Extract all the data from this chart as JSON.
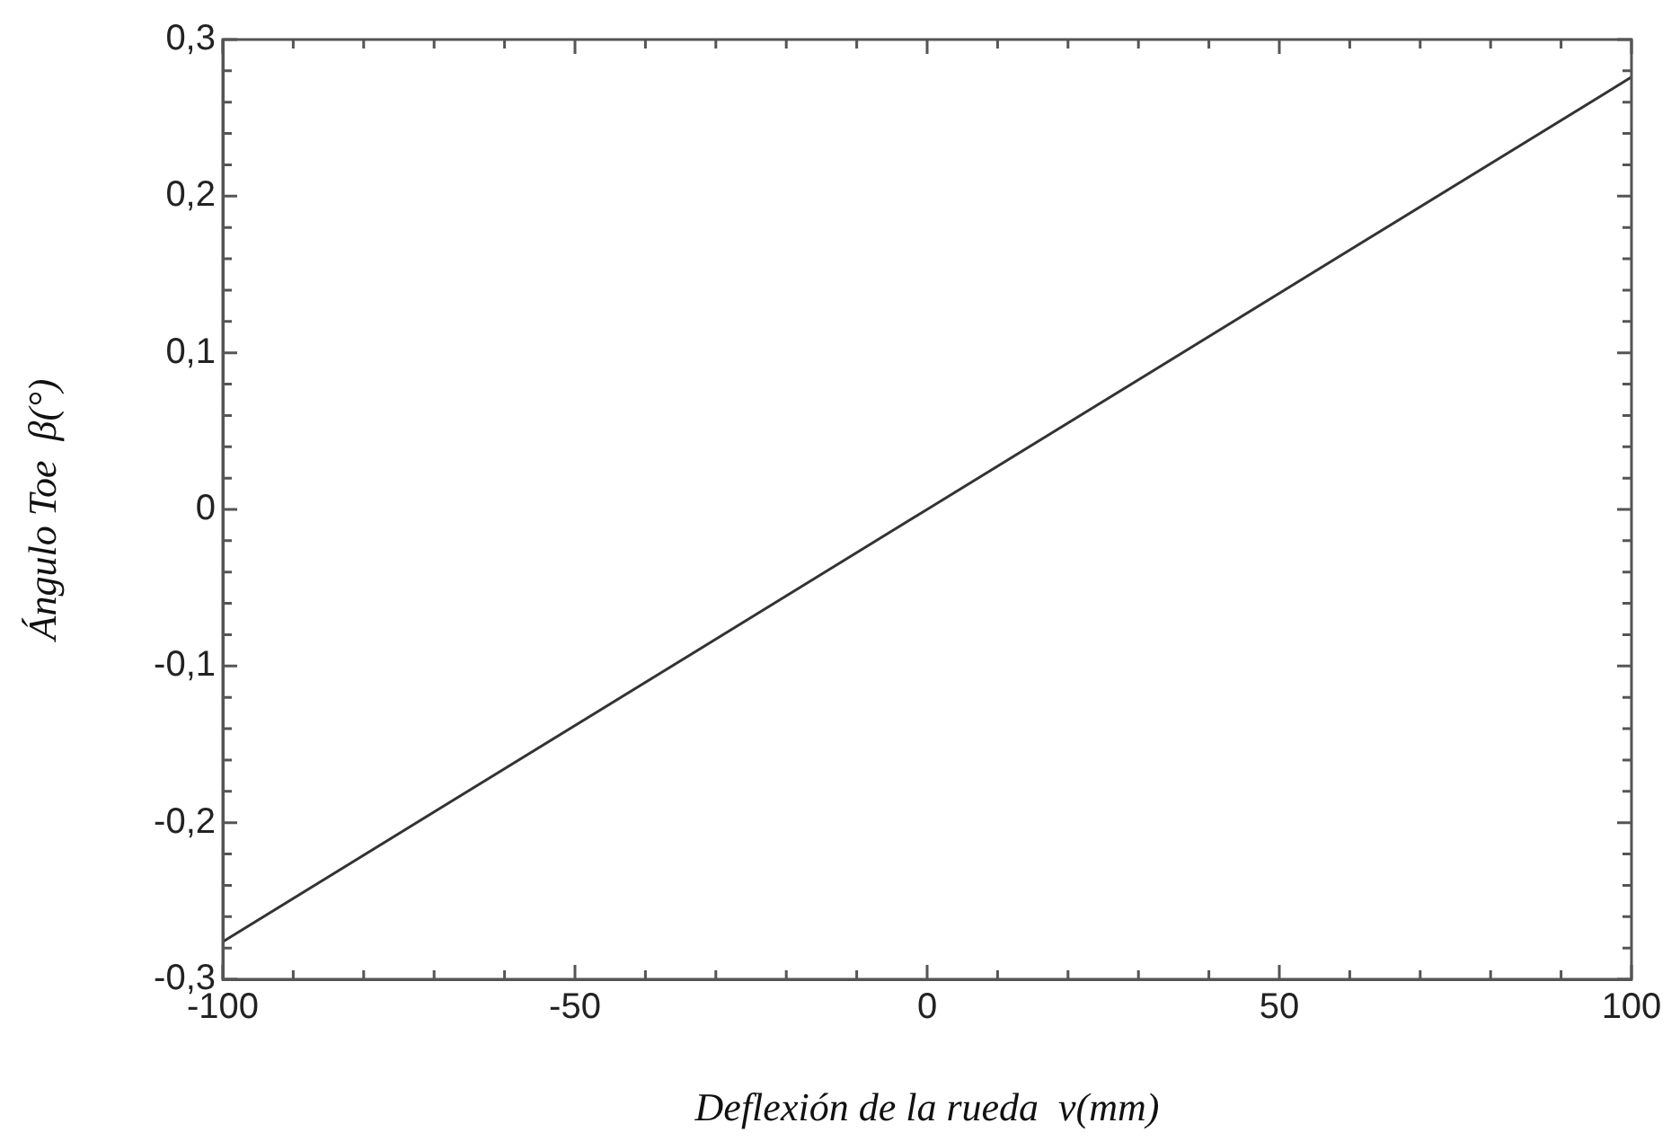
{
  "chart_data": {
    "type": "line",
    "xlabel": "Deflexión de la rueda  v(mm)",
    "ylabel": "Ángulo Toe  β(°)",
    "x": [
      -100,
      0,
      100
    ],
    "series": [
      {
        "color": "#333333",
        "values": [
          -0.276,
          0,
          0.276
        ]
      }
    ],
    "xlim": [
      -100,
      100
    ],
    "ylim": [
      -0.3,
      0.3
    ],
    "xticks": [
      -100,
      {
        "value": -90,
        "label": null
      },
      {
        "value": -80,
        "label": null
      },
      {
        "value": -70,
        "label": null
      },
      {
        "value": -60,
        "label": null
      },
      -50,
      {
        "value": -40,
        "label": null
      },
      {
        "value": -30,
        "label": null
      },
      {
        "value": -20,
        "label": null
      },
      {
        "value": -10,
        "label": null
      },
      0,
      {
        "value": 10,
        "label": null
      },
      {
        "value": 20,
        "label": null
      },
      {
        "value": 30,
        "label": null
      },
      {
        "value": 40,
        "label": null
      },
      50,
      {
        "value": 60,
        "label": null
      },
      {
        "value": 70,
        "label": null
      },
      {
        "value": 80,
        "label": null
      },
      {
        "value": 90,
        "label": null
      },
      100
    ],
    "yticks": [
      {
        "value": -0.3,
        "label": "-0,3"
      },
      {
        "value": -0.28,
        "label": null
      },
      {
        "value": -0.26,
        "label": null
      },
      {
        "value": -0.24,
        "label": null
      },
      {
        "value": -0.22,
        "label": null
      },
      {
        "value": -0.2,
        "label": "-0,2"
      },
      {
        "value": -0.18,
        "label": null
      },
      {
        "value": -0.16,
        "label": null
      },
      {
        "value": -0.14,
        "label": null
      },
      {
        "value": -0.12,
        "label": null
      },
      {
        "value": -0.1,
        "label": "-0,1"
      },
      {
        "value": -0.08,
        "label": null
      },
      {
        "value": -0.06,
        "label": null
      },
      {
        "value": -0.04,
        "label": null
      },
      {
        "value": -0.02,
        "label": null
      },
      0,
      {
        "value": 0.02,
        "label": null
      },
      {
        "value": 0.04,
        "label": null
      },
      {
        "value": 0.06,
        "label": null
      },
      {
        "value": 0.08,
        "label": null
      },
      {
        "value": 0.1,
        "label": "0,1"
      },
      {
        "value": 0.12,
        "label": null
      },
      {
        "value": 0.14,
        "label": null
      },
      {
        "value": 0.16,
        "label": null
      },
      {
        "value": 0.18,
        "label": null
      },
      {
        "value": 0.2,
        "label": "0,2"
      },
      {
        "value": 0.22,
        "label": null
      },
      {
        "value": 0.24,
        "label": null
      },
      {
        "value": 0.26,
        "label": null
      },
      {
        "value": 0.28,
        "label": null
      },
      {
        "value": 0.3,
        "label": "0,3"
      }
    ],
    "grid": false,
    "legend": false,
    "marker": "none",
    "line_style": "solid"
  }
}
